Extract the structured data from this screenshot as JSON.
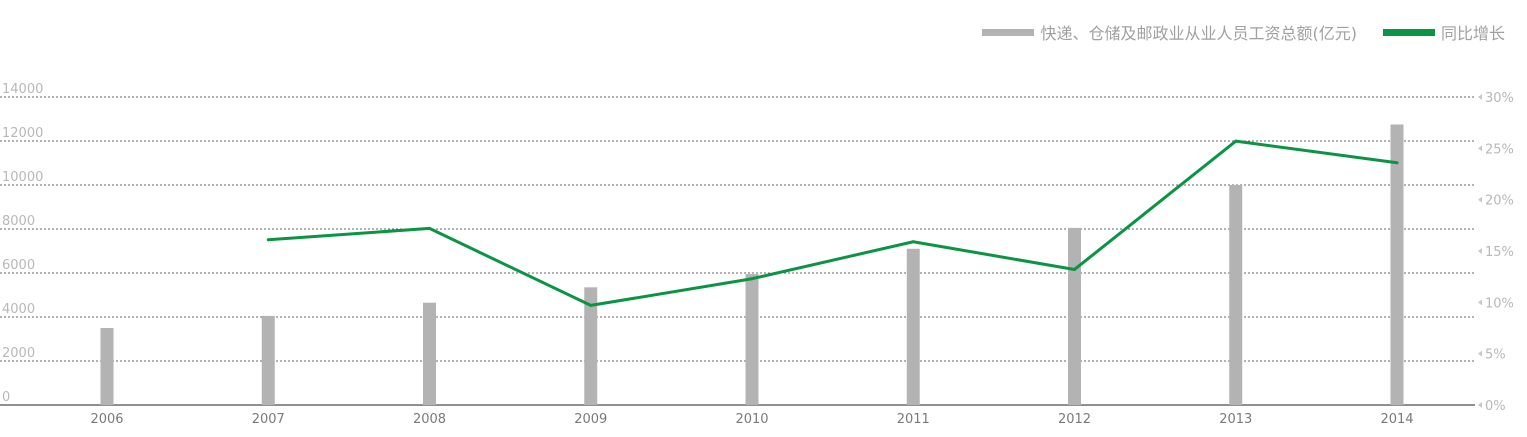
{
  "chart_data": {
    "type": "bar",
    "categories": [
      "2006",
      "2007",
      "2008",
      "2009",
      "2010",
      "2011",
      "2012",
      "2013",
      "2014"
    ],
    "series": [
      {
        "name": "快递、仓储及邮政业从业人员工资总额(亿元)",
        "type": "bar",
        "axis": "left",
        "color": "#b3b3b3",
        "values": [
          3500,
          4050,
          4650,
          5350,
          5950,
          7100,
          8050,
          10000,
          12750
        ]
      },
      {
        "name": "同比增长",
        "type": "line",
        "axis": "right",
        "color": "#0b9444",
        "values": [
          null,
          16.1,
          17.2,
          9.7,
          12.3,
          15.9,
          13.2,
          25.7,
          23.6
        ]
      }
    ],
    "y_left": {
      "ylim": [
        0,
        14000
      ],
      "ticks": [
        "0",
        "2000",
        "4000",
        "6000",
        "8000",
        "10000",
        "12000",
        "14000"
      ]
    },
    "y_right": {
      "ylim": [
        0,
        30
      ],
      "ticks": [
        "0%",
        "5%",
        "10%",
        "15%",
        "20%",
        "25%",
        "30%"
      ]
    },
    "grid": true,
    "legend_position": "top-right",
    "title": "",
    "xlabel": "",
    "ylabel": ""
  }
}
